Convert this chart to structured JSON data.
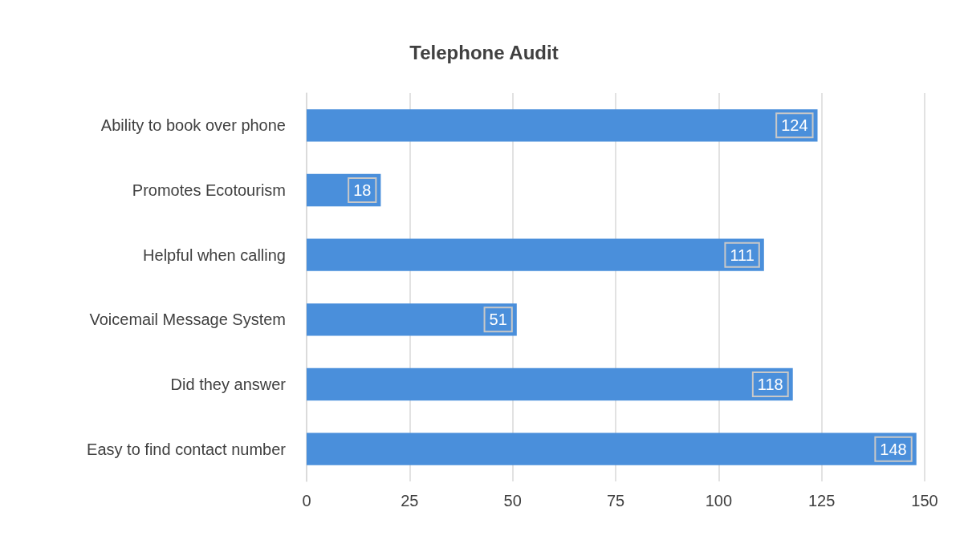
{
  "chart_data": {
    "type": "bar",
    "orientation": "horizontal",
    "title": "Telephone Audit",
    "categories": [
      "Ability to book over phone",
      "Promotes Ecotourism",
      "Helpful when calling",
      "Voicemail Message System",
      "Did they answer",
      "Easy to find contact number"
    ],
    "values": [
      124,
      18,
      111,
      51,
      118,
      148
    ],
    "color": "#4a8fdb",
    "xlim": [
      0,
      150
    ],
    "xticks": [
      0,
      25,
      50,
      75,
      100,
      125,
      150
    ],
    "grid": "x",
    "data_labels": true
  }
}
